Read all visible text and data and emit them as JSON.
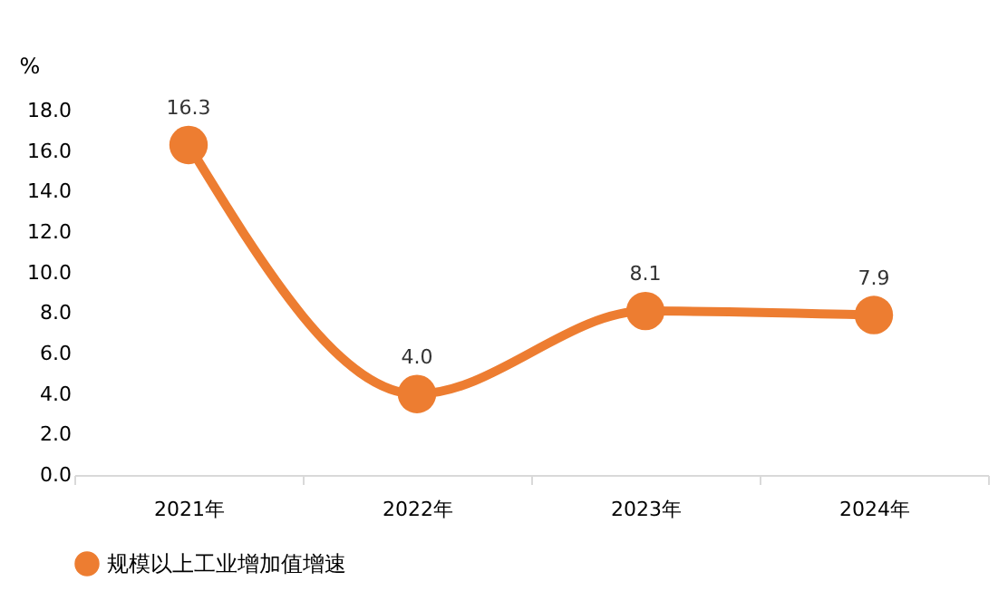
{
  "chart_data": {
    "type": "line",
    "ylabel": "%",
    "categories": [
      "2021年",
      "2022年",
      "2023年",
      "2024年"
    ],
    "series": [
      {
        "name": "规模以上工业增加值增速",
        "color": "#ed7d31",
        "values": [
          16.3,
          4.0,
          8.1,
          7.9
        ]
      }
    ],
    "ylim": [
      0,
      18
    ],
    "yticks": [
      {
        "value": 0,
        "label": "0.0"
      },
      {
        "value": 2,
        "label": "2.0"
      },
      {
        "value": 4,
        "label": "4.0"
      },
      {
        "value": 6,
        "label": "6.0"
      },
      {
        "value": 8,
        "label": "8.0"
      },
      {
        "value": 10,
        "label": "10.0"
      },
      {
        "value": 12,
        "label": "12.0"
      },
      {
        "value": 14,
        "label": "14.0"
      },
      {
        "value": 16,
        "label": "16.0"
      },
      {
        "value": 18,
        "label": "18.0"
      }
    ],
    "value_labels": [
      "16.3",
      "4.0",
      "8.1",
      "7.9"
    ],
    "marker": "circle",
    "line_style": "solid",
    "legend": "bottom",
    "grid": false
  }
}
